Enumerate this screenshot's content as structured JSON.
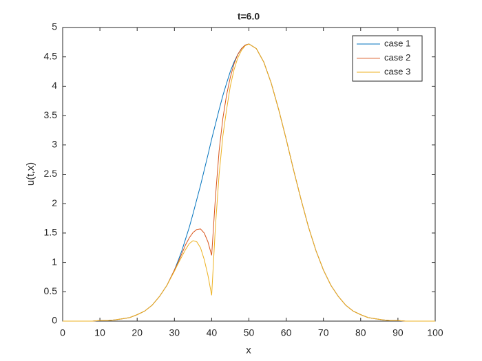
{
  "chart_data": {
    "type": "line",
    "title": "t=6.0",
    "x_label": "x",
    "y_label": "u(t,x)",
    "x": [
      0,
      2,
      4,
      6,
      8,
      10,
      12,
      14,
      16,
      18,
      20,
      22,
      24,
      26,
      28,
      30,
      31,
      32,
      33,
      34,
      35,
      36,
      37,
      38,
      39,
      40,
      41,
      42,
      43,
      44,
      45,
      46,
      47,
      48,
      49,
      50,
      52,
      54,
      56,
      58,
      60,
      62,
      64,
      66,
      68,
      70,
      72,
      74,
      76,
      78,
      80,
      82,
      84,
      86,
      88,
      90,
      92,
      94,
      96,
      98,
      100
    ],
    "series": [
      {
        "name": "case 1",
        "color": "#0072BD",
        "values": [
          0,
          0,
          0,
          0,
          0,
          0.01,
          0.01,
          0.02,
          0.04,
          0.06,
          0.11,
          0.17,
          0.27,
          0.42,
          0.61,
          0.87,
          1.03,
          1.2,
          1.4,
          1.6,
          1.83,
          2.07,
          2.31,
          2.57,
          2.83,
          3.1,
          3.35,
          3.6,
          3.84,
          4.05,
          4.25,
          4.41,
          4.54,
          4.64,
          4.7,
          4.72,
          4.64,
          4.41,
          4.05,
          3.6,
          3.1,
          2.57,
          2.07,
          1.6,
          1.2,
          0.87,
          0.61,
          0.42,
          0.27,
          0.17,
          0.11,
          0.06,
          0.04,
          0.02,
          0.01,
          0.01,
          0,
          0,
          0,
          0,
          0
        ]
      },
      {
        "name": "case 2",
        "color": "#D95319",
        "values": [
          0,
          0,
          0,
          0,
          0,
          0.01,
          0.01,
          0.02,
          0.04,
          0.06,
          0.11,
          0.17,
          0.27,
          0.42,
          0.61,
          0.87,
          1.0,
          1.15,
          1.3,
          1.42,
          1.51,
          1.56,
          1.57,
          1.5,
          1.35,
          1.12,
          2.1,
          2.9,
          3.45,
          3.85,
          4.15,
          4.38,
          4.54,
          4.64,
          4.7,
          4.72,
          4.64,
          4.41,
          4.05,
          3.6,
          3.1,
          2.57,
          2.07,
          1.6,
          1.2,
          0.87,
          0.61,
          0.42,
          0.27,
          0.17,
          0.11,
          0.06,
          0.04,
          0.02,
          0.01,
          0.01,
          0,
          0,
          0,
          0,
          0
        ]
      },
      {
        "name": "case 3",
        "color": "#EDB120",
        "values": [
          0,
          0,
          0,
          0,
          0,
          0.01,
          0.01,
          0.02,
          0.04,
          0.06,
          0.11,
          0.17,
          0.27,
          0.42,
          0.61,
          0.85,
          0.98,
          1.1,
          1.22,
          1.32,
          1.37,
          1.35,
          1.25,
          1.05,
          0.78,
          0.44,
          1.6,
          2.5,
          3.15,
          3.6,
          4.0,
          4.28,
          4.48,
          4.61,
          4.69,
          4.72,
          4.64,
          4.41,
          4.05,
          3.6,
          3.1,
          2.57,
          2.07,
          1.6,
          1.2,
          0.87,
          0.61,
          0.42,
          0.27,
          0.17,
          0.11,
          0.06,
          0.04,
          0.02,
          0.01,
          0.01,
          0,
          0,
          0,
          0,
          0
        ]
      }
    ],
    "xlim": [
      0,
      100
    ],
    "xticks": [
      0,
      10,
      20,
      30,
      40,
      50,
      60,
      70,
      80,
      90,
      100
    ],
    "ylim": [
      0,
      5
    ],
    "yticks": [
      0,
      0.5,
      1,
      1.5,
      2,
      2.5,
      3,
      3.5,
      4,
      4.5,
      5
    ],
    "grid": false,
    "legend": "top-right"
  }
}
